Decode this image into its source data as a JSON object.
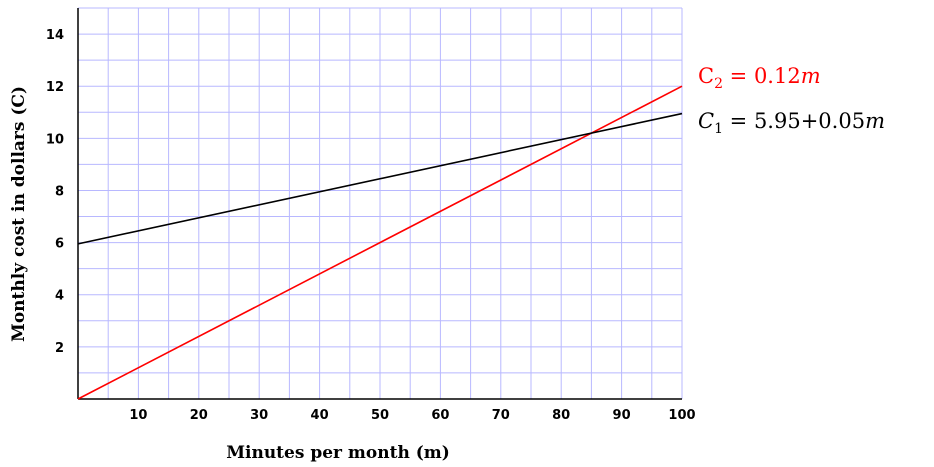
{
  "chart_data": {
    "type": "line",
    "xlabel": "Minutes per month (m)",
    "ylabel": "Monthly cost in dollars (C)",
    "xlim": [
      0,
      100
    ],
    "ylim": [
      0,
      15
    ],
    "x_ticks": [
      10,
      20,
      30,
      40,
      50,
      60,
      70,
      80,
      90,
      100
    ],
    "x_tick_labels": [
      "10",
      "20",
      "30",
      "40",
      "50",
      "60",
      "70",
      "80",
      "90",
      "100"
    ],
    "y_ticks": [
      2,
      4,
      6,
      8,
      10,
      12,
      14
    ],
    "y_tick_labels": [
      "2",
      "4",
      "6",
      "8",
      "10",
      "12",
      "14"
    ],
    "grid": true,
    "grid_step_x": 5,
    "grid_step_y": 1,
    "series": [
      {
        "name": "C2 = 0.12m",
        "label_parts": {
          "symbol": "C",
          "subscript": "2",
          "expression": " = 0.12",
          "variable": "m"
        },
        "color": "#ff0000",
        "x": [
          0,
          100
        ],
        "y": [
          0,
          12
        ]
      },
      {
        "name": "C1 = 5.95+0.05m",
        "label_parts": {
          "symbol": "C",
          "subscript": "1",
          "expression": " = 5.95+0.05",
          "variable": "m"
        },
        "color": "#000000",
        "x": [
          0,
          100
        ],
        "y": [
          5.95,
          10.95
        ]
      }
    ]
  },
  "colors": {
    "grid": "#b8b8ff",
    "axis": "#000000"
  }
}
